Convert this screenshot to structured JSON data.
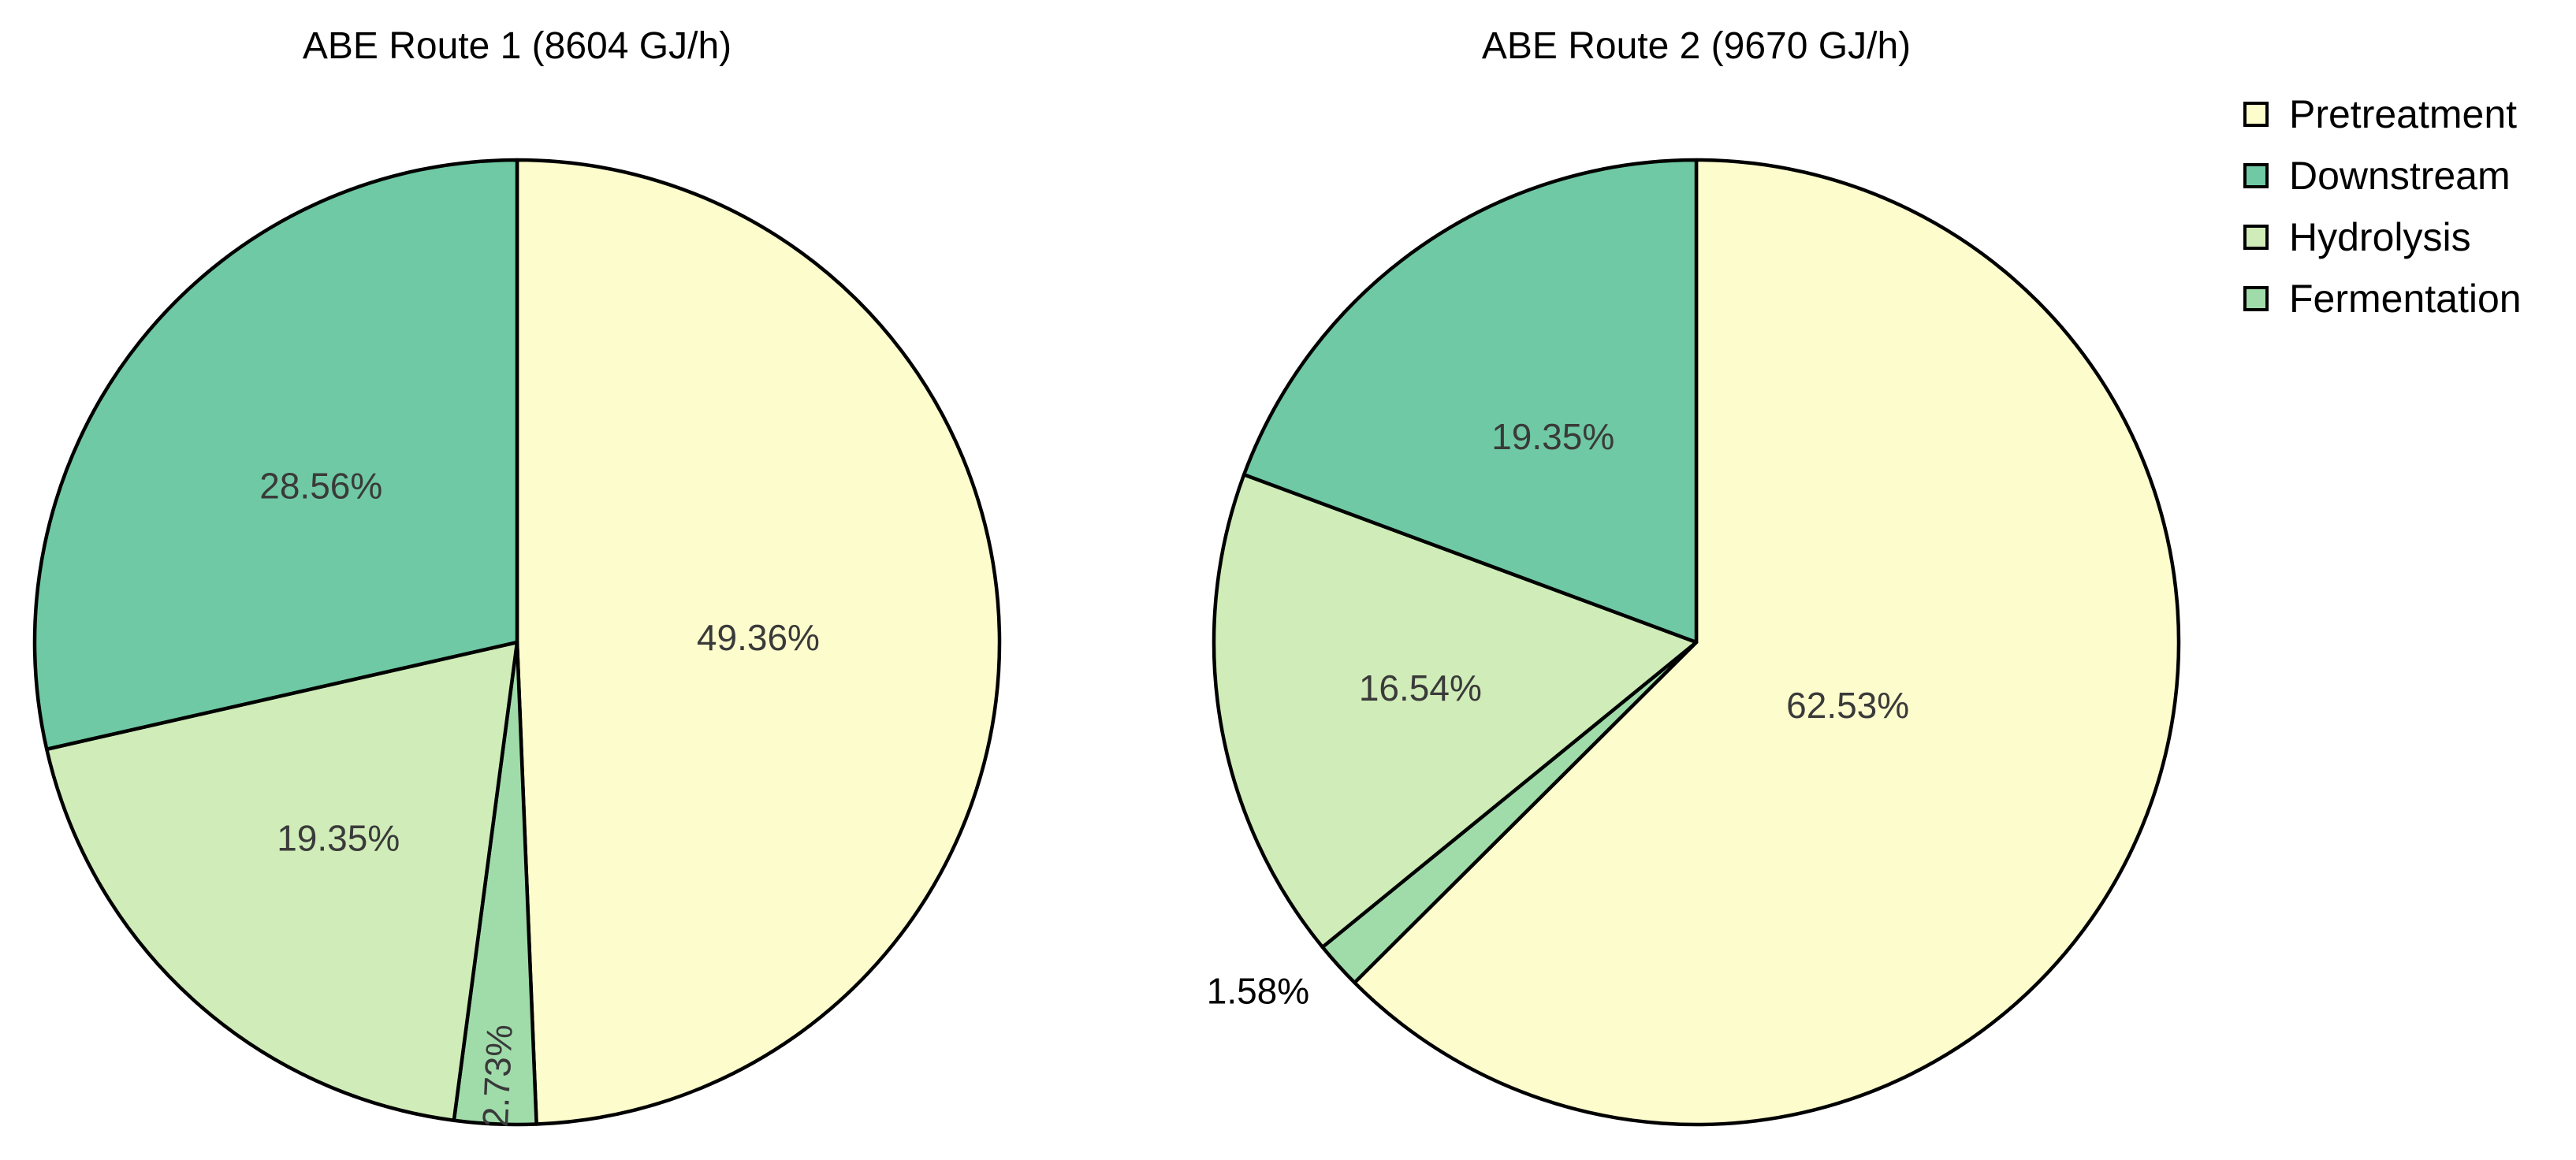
{
  "chart_data": [
    {
      "type": "pie",
      "title": "ABE Route 1 (8604 GJ/h)",
      "slices": [
        {
          "name": "Pretreatment",
          "value": 49.36,
          "label": "49.36%"
        },
        {
          "name": "Fermentation",
          "value": 2.73,
          "label": "2.73%"
        },
        {
          "name": "Hydrolysis",
          "value": 19.35,
          "label": "19.35%"
        },
        {
          "name": "Downstream",
          "value": 28.56,
          "label": "28.56%"
        }
      ]
    },
    {
      "type": "pie",
      "title": "ABE Route 2 (9670 GJ/h)",
      "slices": [
        {
          "name": "Pretreatment",
          "value": 62.53,
          "label": "62.53%"
        },
        {
          "name": "Fermentation",
          "value": 1.58,
          "label": "1.58%"
        },
        {
          "name": "Hydrolysis",
          "value": 16.54,
          "label": "16.54%"
        },
        {
          "name": "Downstream",
          "value": 19.35,
          "label": "19.35%"
        }
      ]
    }
  ],
  "legend": {
    "placement": "top-right",
    "items": [
      {
        "name": "Pretreatment",
        "color": "#fcfccc"
      },
      {
        "name": "Downstream",
        "color": "#6fc9a4"
      },
      {
        "name": "Hydrolysis",
        "color": "#d0ecb8"
      },
      {
        "name": "Fermentation",
        "color": "#a0dcaa"
      }
    ]
  }
}
